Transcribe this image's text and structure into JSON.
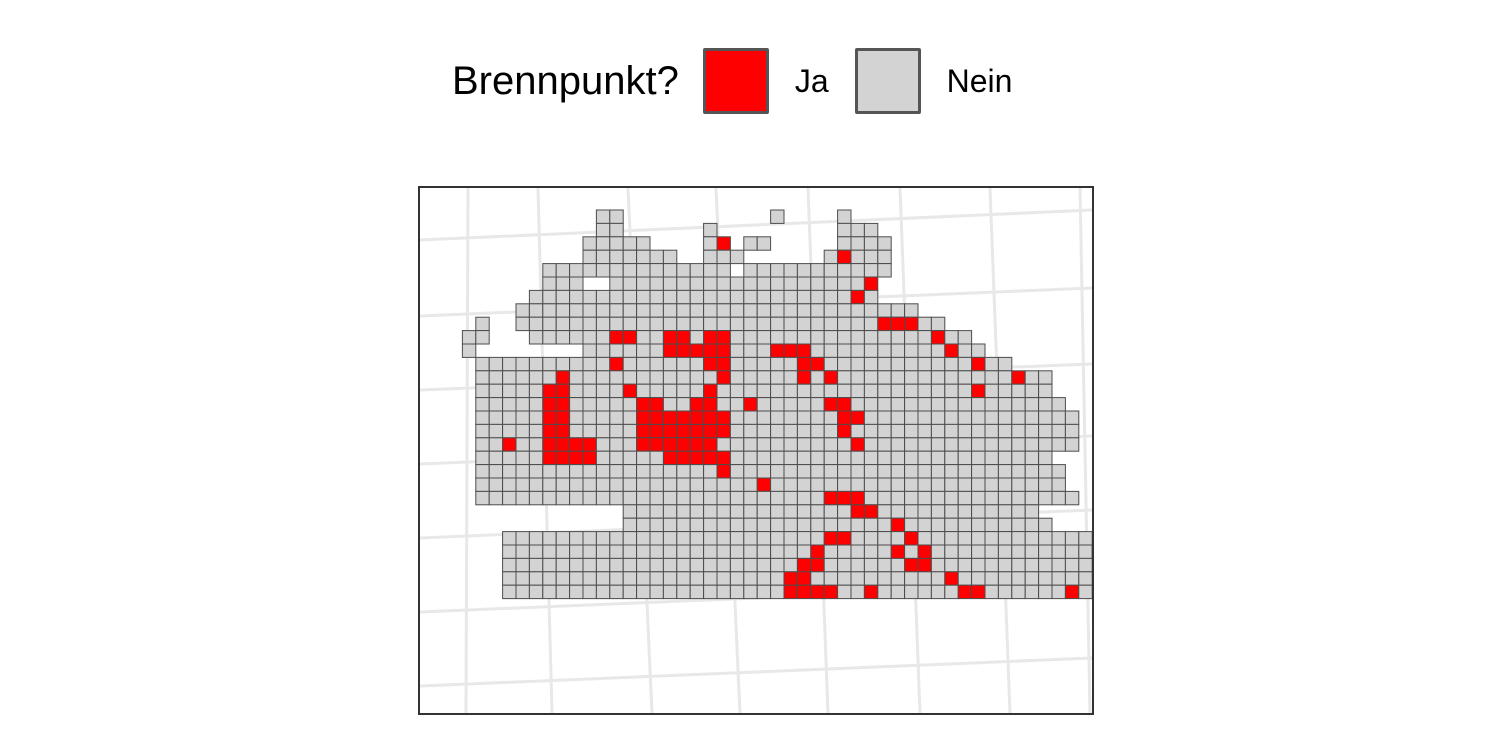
{
  "legend": {
    "title": "Brennpunkt?",
    "items": [
      {
        "label": "Ja",
        "color": "#ff0000"
      },
      {
        "label": "Nein",
        "color": "#d3d3d3"
      }
    ]
  },
  "map": {
    "cell_colors": {
      "ja": "#ff0000",
      "nein": "#d3d3d3"
    },
    "row_legend": "Each row string is one row of hexagon-free square grid cells from north to south: '.' = no cell, 'o' = cell with Brennpunkt Nein, 'X' = cell with Brennpunkt Ja",
    "rows": [
      "...........oo...........o....o..................",
      "...........oo......o.........ooo................",
      "..........ooooo....oX.oo.....oooo...............",
      "..........ooooooo..ooo......oXooo...............",
      ".......oooooooooooooo.ooooooooooo...............",
      ".......ooo..oooooooooooooooooooX................",
      "......ooooooooooooooooooooooooXo................",
      ".....oooooooooooooooooooooooooooooo.............",
      "..o..oooooooooooooooooooooooooooXXXoo...........",
      ".oo...ooooooXXooXXoXXoooooooooooooooXoo.........",
      ".o........ooooooXXXXXoooXXXooooooooooXoo........",
      "..ooooooooooXooooooXXoooooXXoooooooooooXoo......",
      "..ooooooXoooooooooooXoooooXoXoooooooooooooXoo...",
      "..oooooXXooooXoooooXoooooooooooooooooooXooooo...",
      "..oooooXXoooooXXooXXooXoooooXXoooooooooooooooo..",
      "..oooooXXoooooXXXXXXXooooooooXXoooooooooooooooo.",
      "..oooooXXoooooXXXXXXXooooooooXooooooooooooooooo.",
      "..ooXooXXXXoooXXXXXXooooooooooXoooooooooooooooo.",
      "..oooooXXXXoooooXXXXXoooooooooooooooooooooooo...",
      "..ooooooooooooooooooXooooooooooooooooooooooooo..",
      "..oooooooooooooooooooooXoooooooooooooooooooooo..",
      "..ooooooooooooooooooooooooooXXXoooooooooooooooo.",
      ".............oooooooooooooooooXXoooooooooooo....",
      ".............ooooooooooooooooooooXooooooooooo...",
      "....ooooooooooooooooooooooooXXooooXooooooooooooo",
      "....oooooooooooooooooooooooXoooooXoXooooooooooooo",
      "....ooooooooooooooooooooooXXooooooXXoooooooooooo",
      "....oooooooooooooooooooooXXooooooooooXoooooooooo",
      "....oooooooooooooooooooooXXXXooXooooooXXooooooXo"
    ]
  }
}
